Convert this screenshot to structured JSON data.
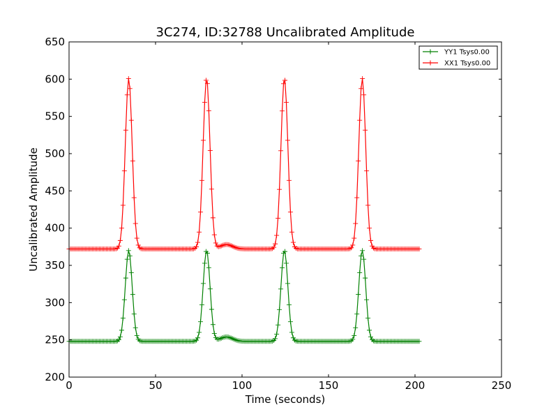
{
  "chart_data": {
    "type": "line",
    "title": "3C274, ID:32788 Uncalibrated Amplitude",
    "xlabel": "Time (seconds)",
    "ylabel": "Uncalibrated Amplitude",
    "xlim": [
      0,
      250
    ],
    "ylim": [
      200,
      650
    ],
    "xticks": [
      0,
      50,
      100,
      150,
      200,
      250
    ],
    "yticks": [
      200,
      250,
      300,
      350,
      400,
      450,
      500,
      550,
      600,
      650
    ],
    "grid": false,
    "legend_position": "top-right",
    "marker": "+",
    "series": [
      {
        "name": "YY1 Tsys0.00",
        "color": "#008000",
        "baseline": 248,
        "peak": 370,
        "peak_times": [
          34.5,
          79.5,
          124.5,
          169.5
        ],
        "peak_width_s": 2.0,
        "bump": {
          "time": 91,
          "height": 6,
          "width_s": 3.5
        },
        "x_start": 0,
        "x_end": 203,
        "x_step": 0.8
      },
      {
        "name": "XX1 Tsys0.00",
        "color": "#ff0000",
        "baseline": 372,
        "peak": 601,
        "peak_times": [
          34.5,
          79.5,
          124.5,
          169.5
        ],
        "peak_width_s": 2.0,
        "bump": {
          "time": 91,
          "height": 6,
          "width_s": 3.5
        },
        "x_start": 0,
        "x_end": 203,
        "x_step": 0.8
      }
    ]
  }
}
